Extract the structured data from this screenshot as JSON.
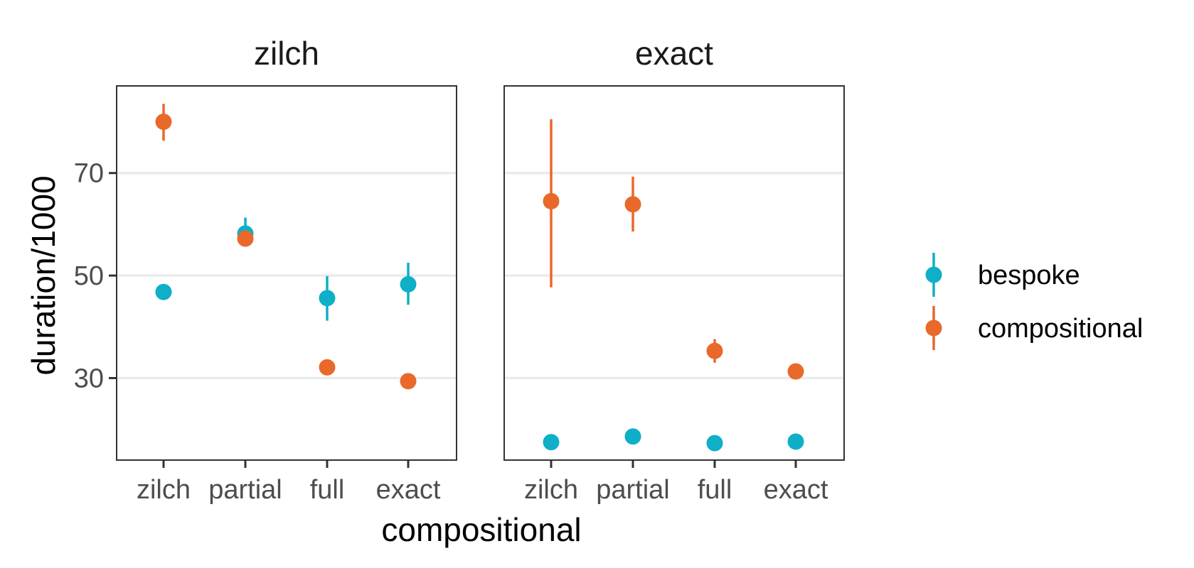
{
  "chart_data": {
    "type": "scatter",
    "xlabel": "compositional",
    "ylabel": "duration/1000",
    "categories": [
      "zilch",
      "partial",
      "full",
      "exact"
    ],
    "y_ticks": [
      30,
      50,
      70
    ],
    "ylim": [
      14,
      87
    ],
    "grid": "horizontal-major",
    "legend_position": "right",
    "colors": {
      "bespoke": "#0EAFC7",
      "compositional": "#E8692A"
    },
    "facets": [
      {
        "title": "zilch",
        "series": [
          {
            "name": "bespoke",
            "points": [
              {
                "x": "zilch",
                "y": 46.8,
                "lo": null,
                "hi": null
              },
              {
                "x": "partial",
                "y": 58.2,
                "lo": 57.0,
                "hi": 61.3
              },
              {
                "x": "full",
                "y": 45.6,
                "lo": 41.2,
                "hi": 49.9
              },
              {
                "x": "exact",
                "y": 48.3,
                "lo": 44.3,
                "hi": 52.5
              }
            ]
          },
          {
            "name": "compositional",
            "points": [
              {
                "x": "zilch",
                "y": 80.0,
                "lo": 76.3,
                "hi": 83.5
              },
              {
                "x": "partial",
                "y": 57.2,
                "lo": null,
                "hi": null
              },
              {
                "x": "full",
                "y": 32.1,
                "lo": null,
                "hi": null
              },
              {
                "x": "exact",
                "y": 29.4,
                "lo": null,
                "hi": null
              }
            ]
          }
        ]
      },
      {
        "title": "exact",
        "series": [
          {
            "name": "bespoke",
            "points": [
              {
                "x": "zilch",
                "y": 17.5,
                "lo": null,
                "hi": null
              },
              {
                "x": "partial",
                "y": 18.6,
                "lo": null,
                "hi": null
              },
              {
                "x": "full",
                "y": 17.3,
                "lo": null,
                "hi": null
              },
              {
                "x": "exact",
                "y": 17.6,
                "lo": null,
                "hi": null
              }
            ]
          },
          {
            "name": "compositional",
            "points": [
              {
                "x": "zilch",
                "y": 64.5,
                "lo": 47.7,
                "hi": 80.5
              },
              {
                "x": "partial",
                "y": 63.9,
                "lo": 58.6,
                "hi": 69.3
              },
              {
                "x": "full",
                "y": 35.3,
                "lo": 33.0,
                "hi": 37.6
              },
              {
                "x": "exact",
                "y": 31.3,
                "lo": null,
                "hi": null
              }
            ]
          }
        ]
      }
    ]
  }
}
